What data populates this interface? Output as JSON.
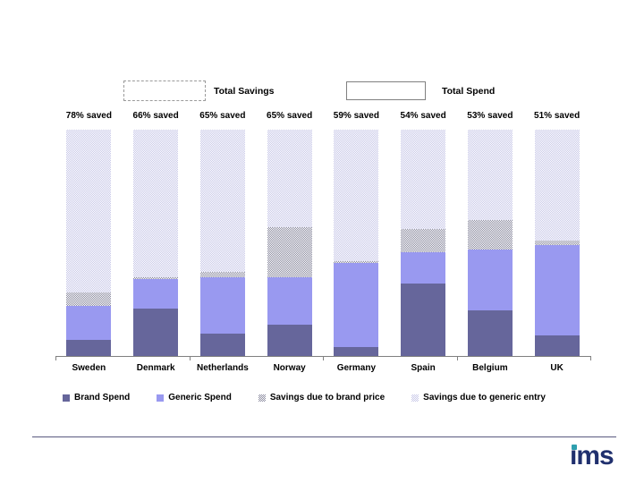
{
  "top_legend": {
    "total_savings_label": "Total Savings",
    "total_spend_label": "Total Spend"
  },
  "chart_data": {
    "type": "bar",
    "stacked": true,
    "title": "",
    "xlabel": "",
    "ylabel": "",
    "unit": "percent of total spend",
    "ylim": [
      0,
      100
    ],
    "grid": false,
    "legend_position": "bottom",
    "categories": [
      "Sweden",
      "Denmark",
      "Netherlands",
      "Norway",
      "Germany",
      "Spain",
      "Belgium",
      "UK"
    ],
    "saved_labels": [
      "78% saved",
      "66% saved",
      "65% saved",
      "65% saved",
      "59% saved",
      "54% saved",
      "53% saved",
      "51% saved"
    ],
    "series": [
      {
        "name": "Brand Spend",
        "style": "solid",
        "color": "#66669B",
        "values": [
          7,
          21,
          10,
          14,
          4,
          32,
          20,
          9
        ]
      },
      {
        "name": "Generic Spend",
        "style": "solid",
        "color": "#9999F0",
        "values": [
          15,
          13,
          25,
          21,
          37,
          14,
          27,
          40
        ]
      },
      {
        "name": "Savings due to brand price",
        "style": "hatch-dark",
        "color": "#8C8CA0",
        "values": [
          6,
          1,
          2,
          22,
          1,
          10,
          13,
          2
        ]
      },
      {
        "name": "Savings due to generic entry",
        "style": "hatch-light",
        "color": "#C8C8E8",
        "values": [
          72,
          65,
          63,
          43,
          58,
          44,
          40,
          49
        ]
      }
    ],
    "annotations": [
      {
        "label": "Total Savings",
        "swatch": "dashed-box"
      },
      {
        "label": "Total Spend",
        "swatch": "solid-box"
      }
    ]
  },
  "footer": {
    "logo_text": "ims"
  },
  "colors": {
    "brand_spend": "#66669B",
    "generic_spend": "#9999F0",
    "savings_brand_price_hatch": "#8C8CA0",
    "savings_generic_entry_hatch": "#C8C8E8",
    "axis": "#808080",
    "footer_line": "#5A5A80",
    "logo_navy": "#20306E",
    "logo_teal": "#2F9FAE"
  }
}
